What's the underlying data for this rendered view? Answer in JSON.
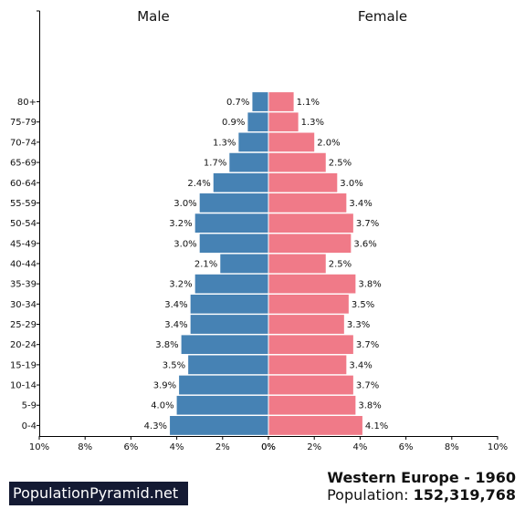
{
  "headers": {
    "male": "Male",
    "female": "Female"
  },
  "brand": {
    "label": "PopulationPyramid.net"
  },
  "footer": {
    "title": "Western Europe - 1960",
    "population_label": "Population:",
    "population_value": "152,319,768"
  },
  "chart_data": {
    "type": "bar",
    "orientation": "horizontal-pyramid",
    "categories": [
      "0-4",
      "5-9",
      "10-14",
      "15-19",
      "20-24",
      "25-29",
      "30-34",
      "35-39",
      "40-44",
      "45-49",
      "50-54",
      "55-59",
      "60-64",
      "65-69",
      "70-74",
      "75-79",
      "80+"
    ],
    "series": [
      {
        "name": "Male",
        "color": "#4682b4",
        "values": [
          4.3,
          4.0,
          3.9,
          3.5,
          3.8,
          3.4,
          3.4,
          3.2,
          2.1,
          3.0,
          3.2,
          3.0,
          2.4,
          1.7,
          1.3,
          0.9,
          0.7
        ]
      },
      {
        "name": "Female",
        "color": "#f07a88",
        "values": [
          4.1,
          3.8,
          3.7,
          3.4,
          3.7,
          3.3,
          3.5,
          3.8,
          2.5,
          3.6,
          3.7,
          3.4,
          3.0,
          2.5,
          2.0,
          1.3,
          1.1
        ]
      }
    ],
    "value_labels": {
      "male": [
        "4.3%",
        "4.0%",
        "3.9%",
        "3.5%",
        "3.8%",
        "3.4%",
        "3.4%",
        "3.2%",
        "2.1%",
        "3.0%",
        "3.2%",
        "3.0%",
        "2.4%",
        "1.7%",
        "1.3%",
        "0.9%",
        "0.7%"
      ],
      "female": [
        "4.1%",
        "3.8%",
        "3.7%",
        "3.4%",
        "3.7%",
        "3.3%",
        "3.5%",
        "3.8%",
        "2.5%",
        "3.6%",
        "3.7%",
        "3.4%",
        "3.0%",
        "2.5%",
        "2.0%",
        "1.3%",
        "1.1%"
      ]
    },
    "x_ticks_male": [
      "10%",
      "8%",
      "6%",
      "4%",
      "2%",
      "0%"
    ],
    "x_ticks_female": [
      "0%",
      "2%",
      "4%",
      "6%",
      "8%",
      "10%"
    ],
    "xlim": [
      0,
      10
    ],
    "unit": "%"
  }
}
